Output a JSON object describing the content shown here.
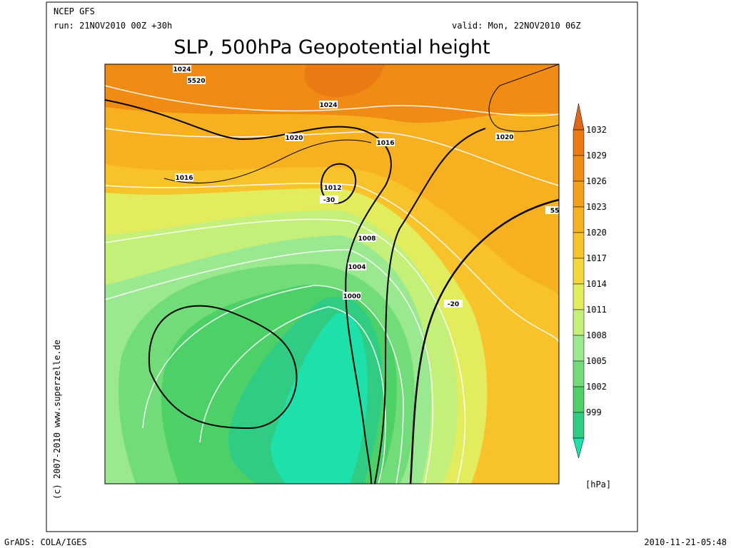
{
  "header": {
    "model": "NCEP GFS",
    "run": "run: 21NOV2010 00Z +30h",
    "valid": "valid: Mon, 22NOV2010 06Z",
    "title": "SLP, 500hPa Geopotential height"
  },
  "map": {
    "contour_labels": [
      "1024",
      "5520",
      "1024",
      "1020",
      "1016",
      "1016",
      "1012",
      "-30",
      "1008",
      "1004",
      "1000",
      "-20",
      "1020",
      "55"
    ]
  },
  "colorbar": {
    "unit": "[hPa]",
    "levels": [
      1032,
      1029,
      1026,
      1023,
      1020,
      1017,
      1014,
      1011,
      1008,
      1005,
      1002,
      999
    ],
    "colors": [
      "#e0661a",
      "#ea7a14",
      "#f08c14",
      "#f5a01a",
      "#f7b020",
      "#f8c22a",
      "#f2d83c",
      "#e2ec5c",
      "#c4f07a",
      "#9ae890",
      "#72dc7a",
      "#4ed068",
      "#30cc84",
      "#1ee0aa"
    ]
  },
  "credit": "(c) 2007-2010 www.superzelle.de",
  "footer": {
    "left": "GrADS: COLA/IGES",
    "right": "2010-11-21-05:48"
  }
}
